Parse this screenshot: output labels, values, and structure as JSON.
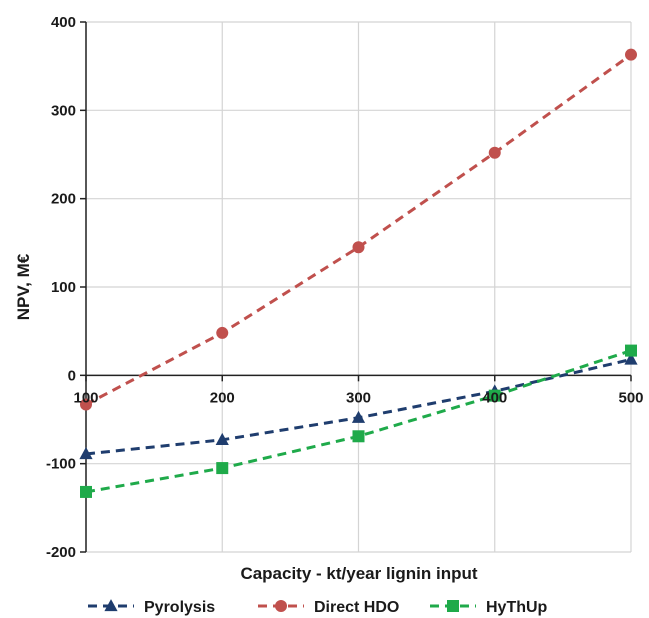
{
  "chart_data": {
    "type": "line",
    "xlabel": "Capacity - kt/year lignin input",
    "ylabel": "NPV, M€",
    "xlim": [
      100,
      500
    ],
    "ylim": [
      -200,
      400
    ],
    "x_ticks": [
      100,
      200,
      300,
      400,
      500
    ],
    "y_ticks": [
      -200,
      -100,
      0,
      100,
      200,
      300,
      400
    ],
    "x_tick_labels": [
      "100",
      "200",
      "300",
      "400",
      "500"
    ],
    "y_tick_labels": [
      "-200",
      "-100",
      "0",
      "100",
      "200",
      "300",
      "400"
    ],
    "grid": true,
    "legend_position": "bottom",
    "x": [
      100,
      200,
      300,
      400,
      500
    ],
    "series": [
      {
        "name": "Pyrolysis",
        "values": [
          -89,
          -73,
          -48,
          -18,
          18
        ],
        "color": "#1f3d6e",
        "marker": "triangle"
      },
      {
        "name": "Direct HDO",
        "values": [
          -33,
          48,
          145,
          252,
          363
        ],
        "color": "#c0504d",
        "marker": "circle"
      },
      {
        "name": "HyThUp",
        "values": [
          -132,
          -105,
          -69,
          -23,
          28
        ],
        "color": "#1faa4a",
        "marker": "square"
      }
    ]
  }
}
